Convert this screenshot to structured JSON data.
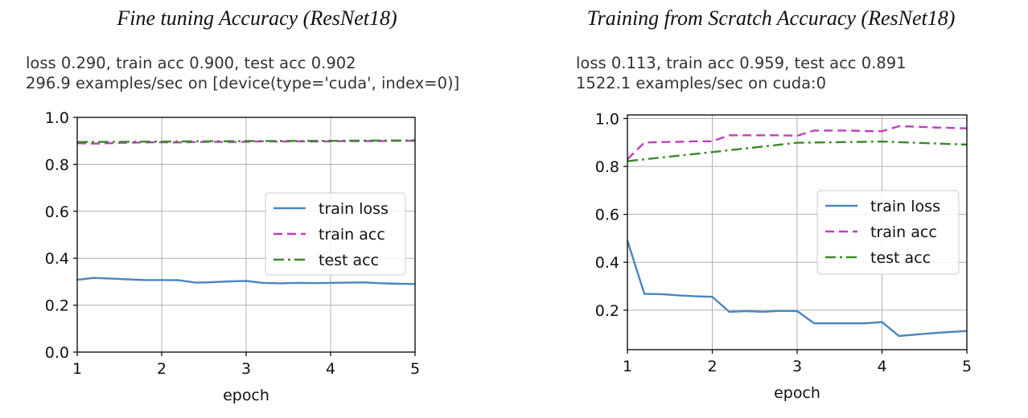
{
  "chart_data": [
    {
      "type": "line",
      "title": "Fine tuning Accuracy (ResNet18)",
      "info": [
        "loss 0.290, train acc 0.900, test acc 0.902",
        "296.9 examples/sec on [device(type='cuda', index=0)]"
      ],
      "xlabel": "epoch",
      "ylabel": "",
      "xlim": [
        1,
        5
      ],
      "ylim": [
        0.0,
        1.0
      ],
      "xticks": [
        "1",
        "2",
        "3",
        "4",
        "5"
      ],
      "yticks": [
        "0.0",
        "0.2",
        "0.4",
        "0.6",
        "0.8",
        "1.0"
      ],
      "grid": true,
      "legend_position": "center-right",
      "series": [
        {
          "name": "train loss",
          "color": "#4a86c0",
          "dash": "solid",
          "x": [
            1.0,
            1.2,
            1.4,
            1.6,
            1.8,
            2.0,
            2.2,
            2.4,
            2.6,
            2.8,
            3.0,
            3.2,
            3.4,
            3.6,
            3.8,
            4.0,
            4.2,
            4.4,
            4.6,
            4.8,
            5.0
          ],
          "values": [
            0.308,
            0.316,
            0.313,
            0.31,
            0.307,
            0.307,
            0.306,
            0.296,
            0.298,
            0.301,
            0.303,
            0.295,
            0.293,
            0.295,
            0.294,
            0.295,
            0.296,
            0.297,
            0.293,
            0.291,
            0.29
          ]
        },
        {
          "name": "train acc",
          "color": "#bf3fbf",
          "dash": "dashed",
          "x": [
            1.0,
            1.2,
            1.4,
            1.6,
            1.8,
            2.0,
            2.2,
            2.4,
            2.6,
            2.8,
            3.0,
            3.2,
            3.4,
            3.6,
            3.8,
            4.0,
            4.2,
            4.4,
            4.6,
            4.8,
            5.0
          ],
          "values": [
            0.89,
            0.888,
            0.89,
            0.892,
            0.893,
            0.894,
            0.893,
            0.895,
            0.896,
            0.895,
            0.896,
            0.898,
            0.897,
            0.898,
            0.897,
            0.898,
            0.899,
            0.899,
            0.899,
            0.9,
            0.9
          ]
        },
        {
          "name": "test acc",
          "color": "#3a8a2a",
          "dash": "dashdot",
          "x": [
            1,
            2,
            3,
            4,
            5
          ],
          "values": [
            0.895,
            0.897,
            0.899,
            0.9,
            0.902
          ]
        }
      ]
    },
    {
      "type": "line",
      "title": "Training from Scratch Accuracy (ResNet18)",
      "info": [
        "loss 0.113, train acc 0.959, test acc 0.891",
        "1522.1 examples/sec on cuda:0"
      ],
      "xlabel": "epoch",
      "ylabel": "",
      "xlim": [
        1,
        5
      ],
      "ylim": [
        0.035,
        1.015
      ],
      "xticks": [
        "1",
        "2",
        "3",
        "4",
        "5"
      ],
      "yticks": [
        "0.2",
        "0.4",
        "0.6",
        "0.8",
        "1.0"
      ],
      "grid": true,
      "legend_position": "center-right",
      "series": [
        {
          "name": "train loss",
          "color": "#4a86c0",
          "dash": "solid",
          "x": [
            1.0,
            1.2,
            1.4,
            1.6,
            1.8,
            2.0,
            2.2,
            2.4,
            2.6,
            2.8,
            3.0,
            3.2,
            3.4,
            3.6,
            3.8,
            4.0,
            4.2,
            4.4,
            4.6,
            4.8,
            5.0
          ],
          "values": [
            0.49,
            0.268,
            0.267,
            0.262,
            0.258,
            0.256,
            0.193,
            0.196,
            0.193,
            0.197,
            0.196,
            0.145,
            0.145,
            0.145,
            0.145,
            0.15,
            0.092,
            0.098,
            0.104,
            0.109,
            0.113
          ]
        },
        {
          "name": "train acc",
          "color": "#bf3fbf",
          "dash": "dashed",
          "x": [
            1.0,
            1.2,
            1.4,
            1.6,
            1.8,
            2.0,
            2.2,
            2.4,
            2.6,
            2.8,
            3.0,
            3.2,
            3.4,
            3.6,
            3.8,
            4.0,
            4.2,
            4.4,
            4.6,
            4.8,
            5.0
          ],
          "values": [
            0.83,
            0.9,
            0.902,
            0.903,
            0.905,
            0.905,
            0.93,
            0.93,
            0.93,
            0.93,
            0.928,
            0.95,
            0.95,
            0.95,
            0.948,
            0.947,
            0.968,
            0.966,
            0.963,
            0.961,
            0.959
          ]
        },
        {
          "name": "test acc",
          "color": "#3a8a2a",
          "dash": "dashdot",
          "x": [
            1,
            2,
            3,
            4,
            5
          ],
          "values": [
            0.822,
            0.86,
            0.899,
            0.904,
            0.891
          ]
        }
      ]
    }
  ]
}
